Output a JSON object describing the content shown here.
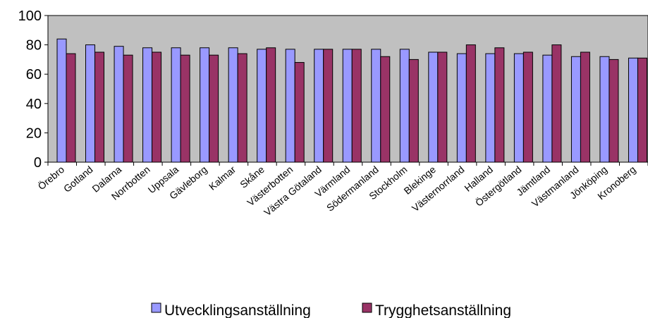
{
  "chart_data": {
    "type": "bar",
    "categories": [
      "Örebro",
      "Gotland",
      "Dalarna",
      "Norrbotten",
      "Uppsala",
      "Gävleborg",
      "Kalmar",
      "Skåne",
      "Västerbotten",
      "Västra Götaland",
      "Värmland",
      "Södermanland",
      "Stockholm",
      "Blekinge",
      "Västernorrland",
      "Halland",
      "Östergötland",
      "Jämtland",
      "Västmanland",
      "Jönköping",
      "Kronoberg"
    ],
    "series": [
      {
        "name": "Utvecklingsanställning",
        "color": "#9999ff",
        "values": [
          84,
          80,
          79,
          78,
          78,
          78,
          78,
          77,
          77,
          77,
          77,
          77,
          77,
          75,
          74,
          74,
          74,
          73,
          72,
          72,
          71
        ]
      },
      {
        "name": "Trygghetsanställning",
        "color": "#993366",
        "values": [
          74,
          75,
          73,
          75,
          73,
          73,
          74,
          78,
          68,
          77,
          77,
          72,
          70,
          75,
          80,
          78,
          75,
          80,
          75,
          70,
          71
        ]
      }
    ],
    "ylim": [
      0,
      100
    ],
    "yticks": [
      0,
      20,
      40,
      60,
      80,
      100
    ],
    "grid": false,
    "plot_background": "#c0c0c0",
    "legend_position": "bottom"
  }
}
